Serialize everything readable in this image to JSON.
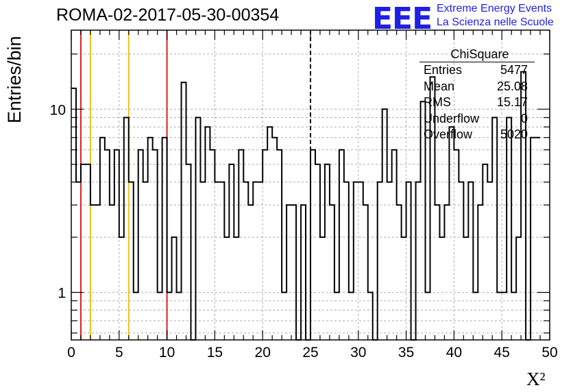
{
  "title": "ROMA-02-2017-05-30-00354",
  "logo": {
    "mark": "EEE",
    "line1": "Extreme Energy Events",
    "line2": "La Scienza nelle Scuole",
    "color": "#1f1fe6"
  },
  "stats_box": {
    "name": "ChiSquare",
    "rows": [
      {
        "label": "Entries",
        "value": "5477"
      },
      {
        "label": "Mean",
        "value": "25.08"
      },
      {
        "label": "RMS",
        "value": "15.17"
      },
      {
        "label": "Underflow",
        "value": "0"
      },
      {
        "label": "Overflow",
        "value": "5020"
      }
    ]
  },
  "chart_data": {
    "type": "histogram",
    "title": "ROMA-02-2017-05-30-00354",
    "xlabel": "X²",
    "ylabel": "Entries/bin",
    "xlim": [
      0,
      50
    ],
    "ylim": [
      0.55,
      27
    ],
    "yscale": "log",
    "grid": true,
    "bin_width": 0.5,
    "x_ticks": [
      "0",
      "5",
      "10",
      "15",
      "20",
      "25",
      "30",
      "35",
      "40",
      "45",
      "50"
    ],
    "y_ticks": [
      "1",
      "10"
    ],
    "values": [
      13,
      4,
      5,
      5,
      3,
      3,
      7,
      6,
      3,
      6,
      2,
      9,
      4,
      1,
      6,
      4,
      7,
      6,
      1,
      7,
      1,
      2,
      1,
      14,
      5,
      0,
      9,
      4,
      8,
      6,
      4,
      4,
      2,
      5,
      2,
      6,
      4,
      3,
      4,
      4,
      6,
      8,
      7,
      6,
      1,
      3,
      3,
      0,
      3,
      0,
      6,
      5,
      2,
      5,
      3,
      1,
      6,
      4,
      1,
      4,
      4,
      3,
      1,
      0,
      4,
      10,
      4,
      6,
      3,
      2,
      4,
      0,
      4,
      11,
      1,
      15,
      3,
      2,
      3,
      8,
      6,
      4,
      2,
      4,
      1,
      3,
      5,
      4,
      9,
      1,
      1,
      9,
      1,
      2,
      16,
      0,
      7,
      7
    ],
    "reference_lines": [
      {
        "x": 1,
        "color": "#e0201c",
        "style": "solid"
      },
      {
        "x": 2,
        "color": "#ecc11a",
        "style": "solid"
      },
      {
        "x": 6,
        "color": "#ecc11a",
        "style": "solid"
      },
      {
        "x": 10,
        "color": "#e0201c",
        "style": "solid"
      },
      {
        "x": 25,
        "color": "#000000",
        "style": "dashed"
      }
    ],
    "line_color": "#000000"
  }
}
